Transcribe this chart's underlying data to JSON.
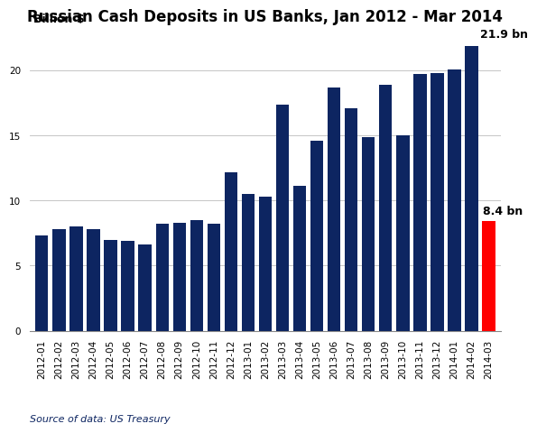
{
  "title": "Russian Cash Deposits in US Banks, Jan 2012 - Mar 2014",
  "ylabel": "Billion $",
  "source": "Source of data: US Treasury",
  "categories": [
    "2012-01",
    "2012-02",
    "2012-03",
    "2012-04",
    "2012-05",
    "2012-06",
    "2012-07",
    "2012-08",
    "2012-09",
    "2012-10",
    "2012-11",
    "2012-12",
    "2013-01",
    "2013-02",
    "2013-03",
    "2013-04",
    "2013-05",
    "2013-06",
    "2013-07",
    "2013-08",
    "2013-09",
    "2013-10",
    "2013-11",
    "2013-12",
    "2014-01",
    "2014-02",
    "2014-03"
  ],
  "values": [
    7.3,
    7.8,
    8.0,
    7.8,
    7.0,
    6.9,
    6.6,
    8.2,
    8.3,
    8.5,
    8.2,
    12.2,
    10.5,
    10.3,
    17.4,
    11.1,
    14.6,
    18.7,
    17.1,
    14.9,
    18.9,
    15.0,
    19.7,
    19.8,
    20.1,
    21.9,
    8.4
  ],
  "bar_color_default": "#0d2561",
  "bar_color_highlight": "#ff0000",
  "highlight_index": 26,
  "peak_index": 25,
  "annotation_peak": "21.9 bn",
  "annotation_highlight": "8.4 bn",
  "ylim": [
    0,
    23.0
  ],
  "yticks": [
    0,
    5,
    10,
    15,
    20
  ],
  "title_fontsize": 12,
  "label_fontsize": 9,
  "tick_fontsize": 7.5,
  "source_fontsize": 8,
  "annot_fontsize": 9,
  "background_color": "#ffffff",
  "grid_color": "#bbbbbb"
}
